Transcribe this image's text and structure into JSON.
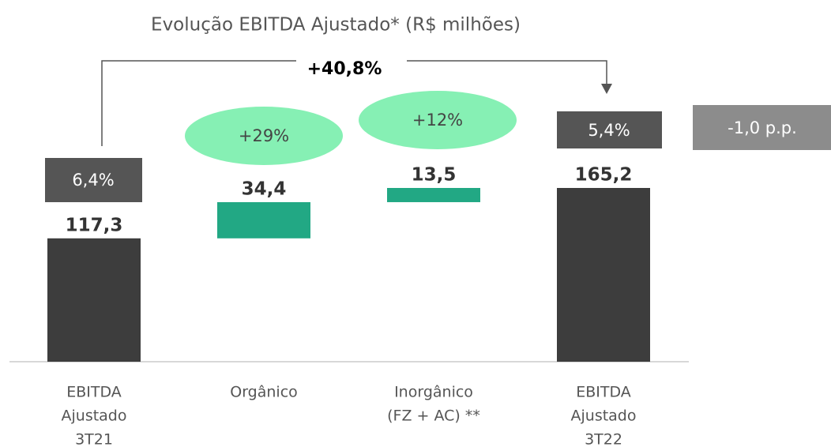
{
  "chart_data": {
    "type": "waterfall",
    "title": "Evolução EBITDA Ajustado* (R$ milhões)",
    "categories": [
      [
        "EBITDA",
        "Ajustado",
        "3T21"
      ],
      [
        "Orgânico"
      ],
      [
        "Inorgânico",
        "(FZ + AC) **"
      ],
      [
        "EBITDA",
        "Ajustado",
        "3T22"
      ]
    ],
    "values": [
      117.3,
      34.4,
      13.5,
      165.2
    ],
    "value_labels": [
      "117,3",
      "34,4",
      "13,5",
      "165,2"
    ],
    "measure": [
      "absolute",
      "relative",
      "relative",
      "absolute"
    ],
    "colors": [
      "#3d3d3d",
      "#22a884",
      "#22a884",
      "#3d3d3d"
    ],
    "total_change": "+40,8%",
    "growth": [
      "+29%",
      "+12%"
    ],
    "margins": [
      "6,4%",
      "5,4%"
    ],
    "margin_change": "-1,0 p.p."
  }
}
